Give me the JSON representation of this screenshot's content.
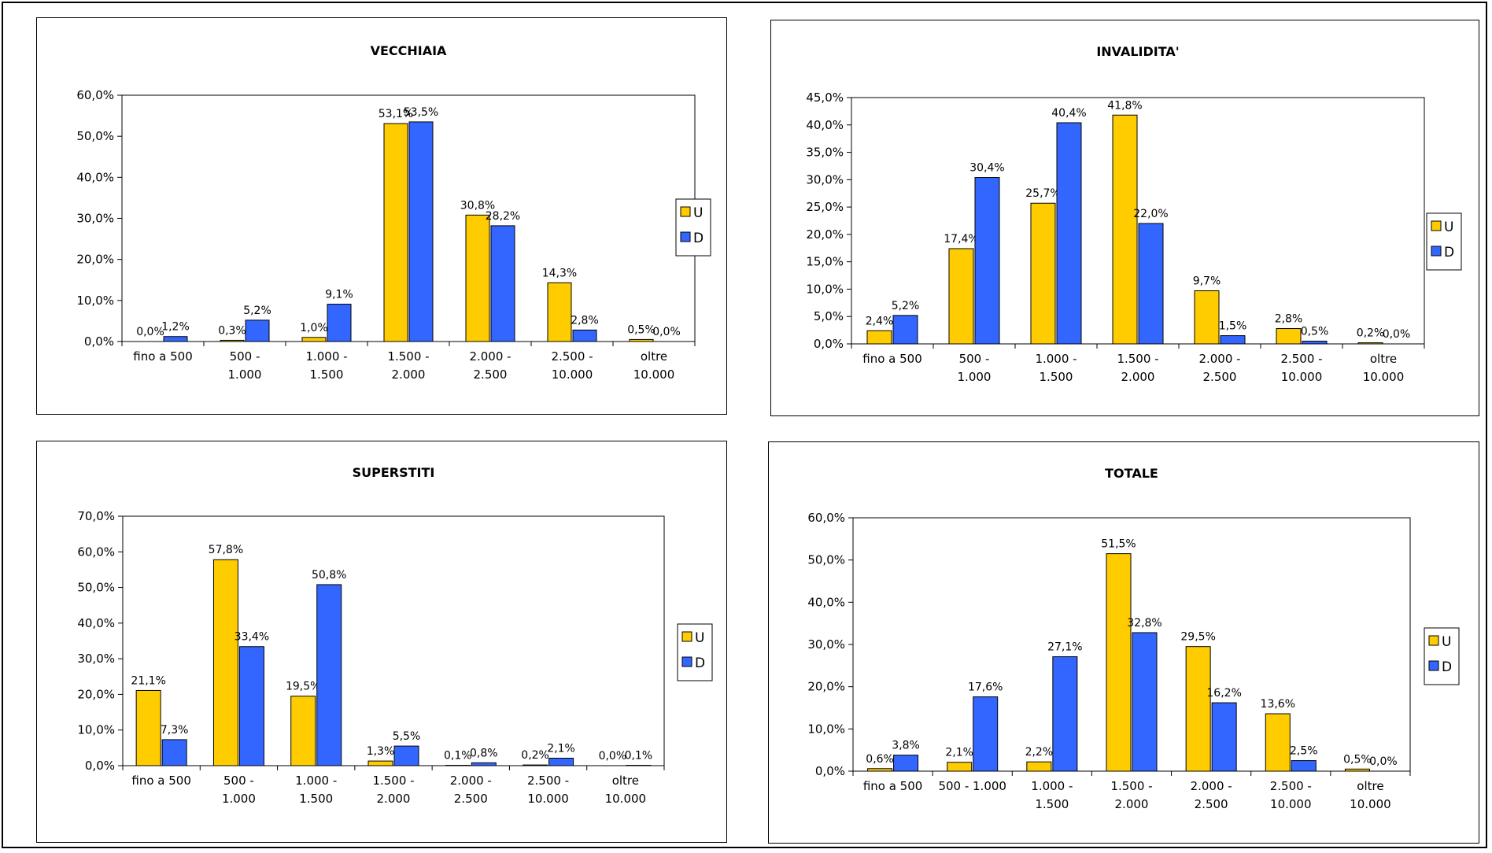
{
  "chart_data": [
    {
      "type": "bar",
      "title": "VECCHIAIA",
      "categories": [
        [
          "fino a 500"
        ],
        [
          "500 -",
          "1.000"
        ],
        [
          "1.000 -",
          "1.500"
        ],
        [
          "1.500 -",
          "2.000"
        ],
        [
          "2.000 -",
          "2.500"
        ],
        [
          "2.500 -",
          "10.000"
        ],
        [
          "oltre",
          "10.000"
        ]
      ],
      "series": [
        {
          "name": "U",
          "color": "#FFCC00",
          "values": [
            0.0,
            0.3,
            1.0,
            53.1,
            30.8,
            14.3,
            0.5
          ],
          "labels": [
            "0,0%",
            "0,3%",
            "1,0%",
            "53,1%",
            "30,8%",
            "14,3%",
            "0,5%"
          ]
        },
        {
          "name": "D",
          "color": "#3366FF",
          "values": [
            1.2,
            5.2,
            9.1,
            53.5,
            28.2,
            2.8,
            0.0
          ],
          "labels": [
            "1,2%",
            "5,2%",
            "9,1%",
            "53,5%",
            "28,2%",
            "2,8%",
            "0,0%"
          ]
        }
      ],
      "ylim": [
        0,
        60
      ],
      "yticks": [
        "0,0%",
        "10,0%",
        "20,0%",
        "30,0%",
        "40,0%",
        "50,0%",
        "60,0%"
      ],
      "legend": "right"
    },
    {
      "type": "bar",
      "title": "INVALIDITA'",
      "categories": [
        [
          "fino a 500"
        ],
        [
          "500 -",
          "1.000"
        ],
        [
          "1.000 -",
          "1.500"
        ],
        [
          "1.500 -",
          "2.000"
        ],
        [
          "2.000 -",
          "2.500"
        ],
        [
          "2.500 -",
          "10.000"
        ],
        [
          "oltre",
          "10.000"
        ]
      ],
      "series": [
        {
          "name": "U",
          "color": "#FFCC00",
          "values": [
            2.4,
            17.4,
            25.7,
            41.8,
            9.7,
            2.8,
            0.2
          ],
          "labels": [
            "2,4%",
            "17,4%",
            "25,7%",
            "41,8%",
            "9,7%",
            "2,8%",
            "0,2%"
          ]
        },
        {
          "name": "D",
          "color": "#3366FF",
          "values": [
            5.2,
            30.4,
            40.4,
            22.0,
            1.5,
            0.5,
            0.0
          ],
          "labels": [
            "5,2%",
            "30,4%",
            "40,4%",
            "22,0%",
            "1,5%",
            "0,5%",
            "0,0%"
          ]
        }
      ],
      "ylim": [
        0,
        45
      ],
      "yticks": [
        "0,0%",
        "5,0%",
        "10,0%",
        "15,0%",
        "20,0%",
        "25,0%",
        "30,0%",
        "35,0%",
        "40,0%",
        "45,0%"
      ],
      "legend": "right"
    },
    {
      "type": "bar",
      "title": "SUPERSTITI",
      "categories": [
        [
          "fino a 500"
        ],
        [
          "500 -",
          "1.000"
        ],
        [
          "1.000 -",
          "1.500"
        ],
        [
          "1.500 -",
          "2.000"
        ],
        [
          "2.000 -",
          "2.500"
        ],
        [
          "2.500 -",
          "10.000"
        ],
        [
          "oltre",
          "10.000"
        ]
      ],
      "series": [
        {
          "name": "U",
          "color": "#FFCC00",
          "values": [
            21.1,
            57.8,
            19.5,
            1.3,
            0.1,
            0.2,
            0.0
          ],
          "labels": [
            "21,1%",
            "57,8%",
            "19,5%",
            "1,3%",
            "0,1%",
            "0,2%",
            "0,0%"
          ]
        },
        {
          "name": "D",
          "color": "#3366FF",
          "values": [
            7.3,
            33.4,
            50.8,
            5.5,
            0.8,
            2.1,
            0.1
          ],
          "labels": [
            "7,3%",
            "33,4%",
            "50,8%",
            "5,5%",
            "0,8%",
            "2,1%",
            "0,1%"
          ]
        }
      ],
      "ylim": [
        0,
        70
      ],
      "yticks": [
        "0,0%",
        "10,0%",
        "20,0%",
        "30,0%",
        "40,0%",
        "50,0%",
        "60,0%",
        "70,0%"
      ],
      "legend": "right"
    },
    {
      "type": "bar",
      "title": "TOTALE",
      "categories": [
        [
          "fino a 500"
        ],
        [
          "500 - 1.000"
        ],
        [
          "1.000 -",
          "1.500"
        ],
        [
          "1.500 -",
          "2.000"
        ],
        [
          "2.000 -",
          "2.500"
        ],
        [
          "2.500 -",
          "10.000"
        ],
        [
          "oltre",
          "10.000"
        ]
      ],
      "series": [
        {
          "name": "U",
          "color": "#FFCC00",
          "values": [
            0.6,
            2.1,
            2.2,
            51.5,
            29.5,
            13.6,
            0.5
          ],
          "labels": [
            "0,6%",
            "2,1%",
            "2,2%",
            "51,5%",
            "29,5%",
            "13,6%",
            "0,5%"
          ]
        },
        {
          "name": "D",
          "color": "#3366FF",
          "values": [
            3.8,
            17.6,
            27.1,
            32.8,
            16.2,
            2.5,
            0.0
          ],
          "labels": [
            "3,8%",
            "17,6%",
            "27,1%",
            "32,8%",
            "16,2%",
            "2,5%",
            "0,0%"
          ]
        }
      ],
      "ylim": [
        0,
        60
      ],
      "yticks": [
        "0,0%",
        "10,0%",
        "20,0%",
        "30,0%",
        "40,0%",
        "50,0%",
        "60,0%"
      ],
      "legend": "right"
    }
  ]
}
